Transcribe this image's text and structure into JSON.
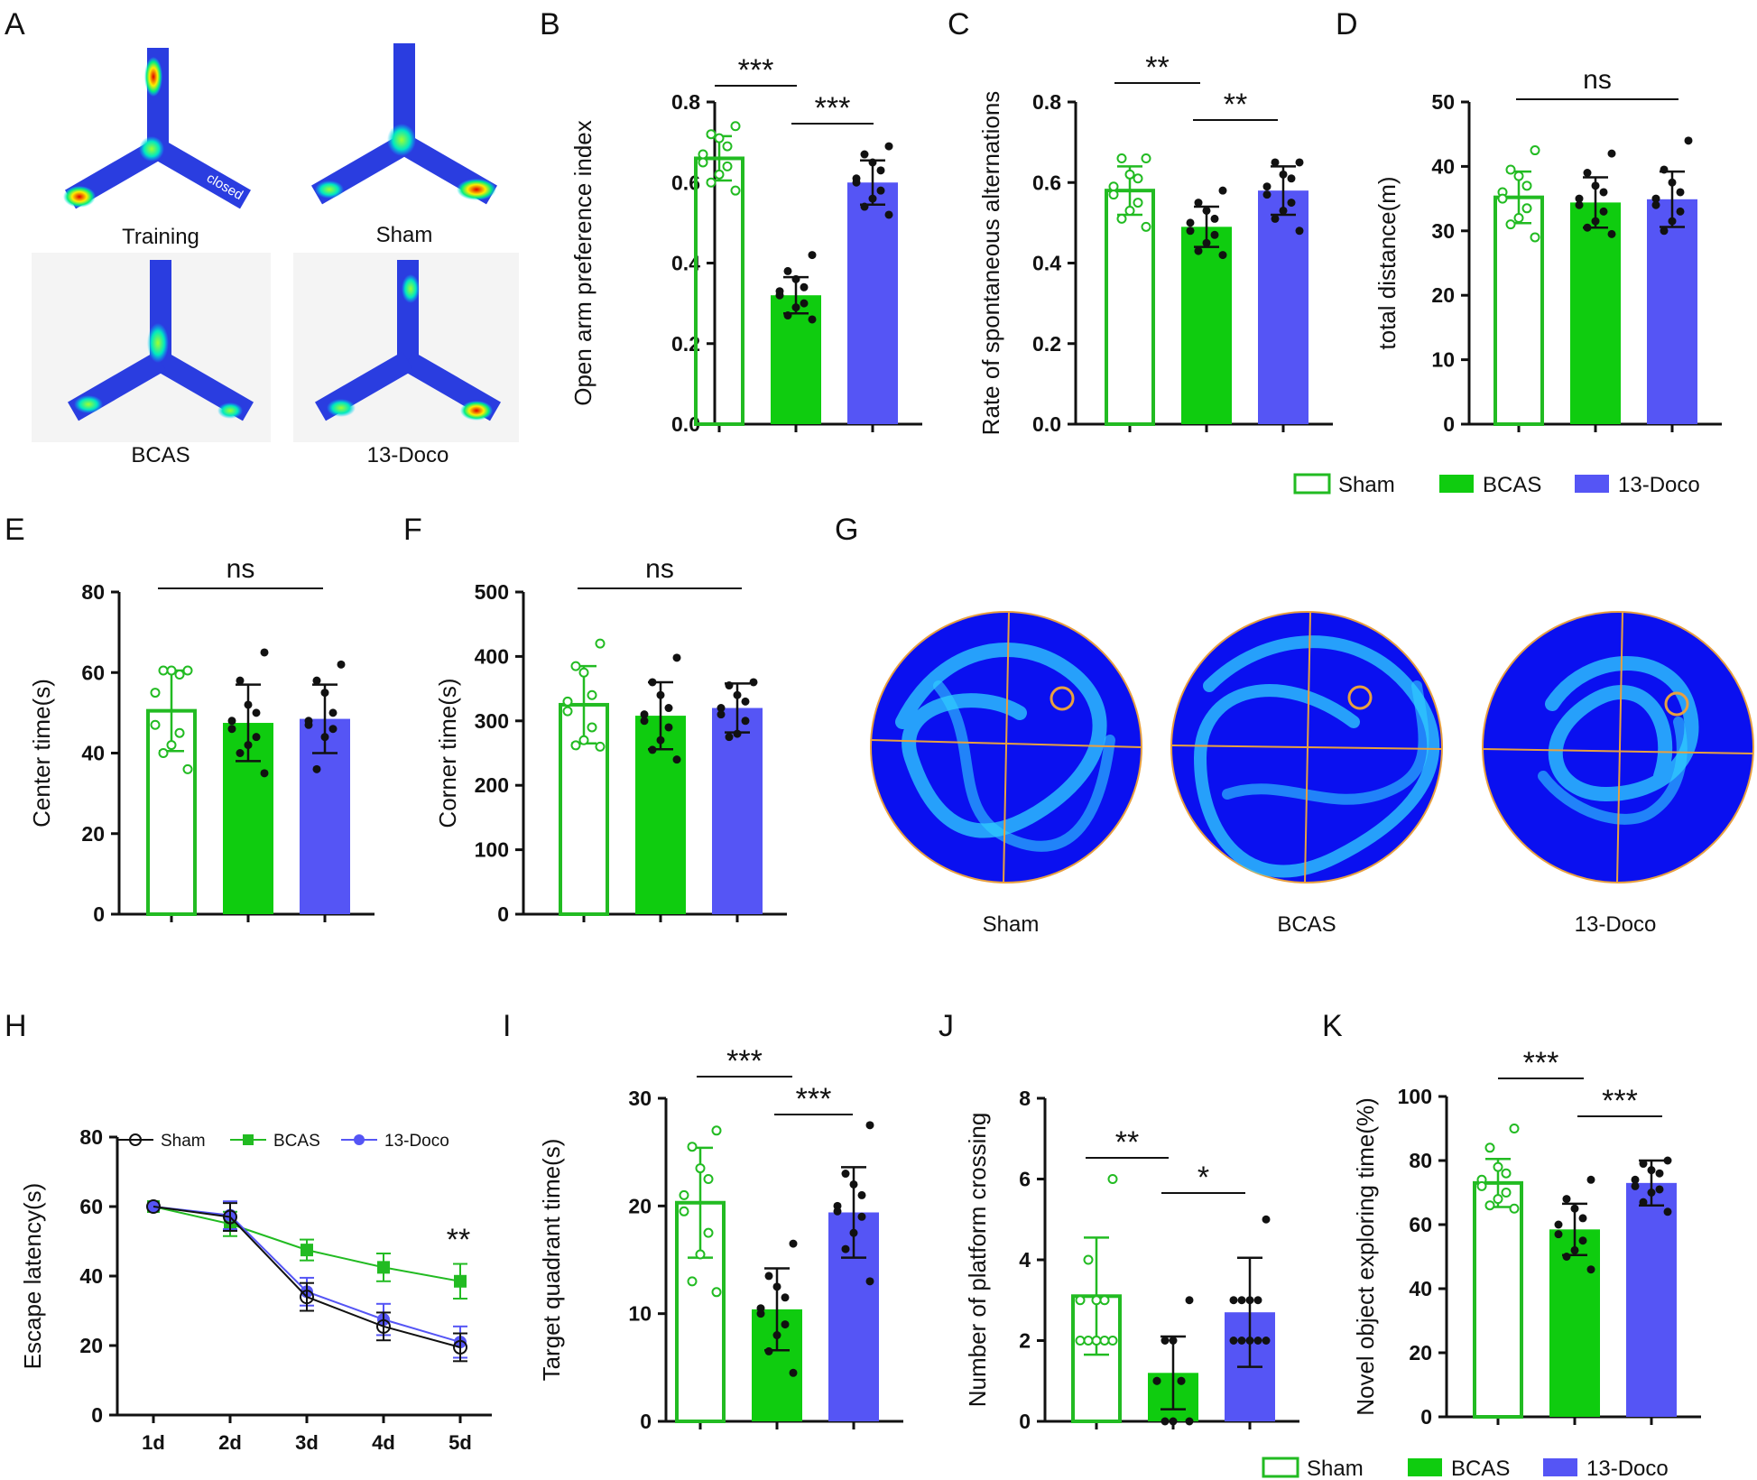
{
  "colors": {
    "sham": "#22bb22",
    "bcas": "#0fcc0f",
    "doco": "#5555f5",
    "ink": "#111111"
  },
  "legend": {
    "sham": "Sham",
    "bcas": "BCAS",
    "doco": "13-Doco"
  },
  "panels": {
    "A": {
      "letter": "A",
      "images": [
        {
          "label": "Training",
          "arm_label": "closed"
        },
        {
          "label": "Sham"
        },
        {
          "label": "BCAS"
        },
        {
          "label": "13-Doco"
        }
      ]
    },
    "G": {
      "letter": "G",
      "labels": [
        "Sham",
        "BCAS",
        "13-Doco"
      ]
    }
  },
  "chart_data": [
    {
      "id": "B",
      "type": "bar",
      "ylabel": "Open arm preference index",
      "ylim": [
        0,
        0.8
      ],
      "ticks": [
        "0.0",
        "0.2",
        "0.4",
        "0.6",
        "0.8"
      ],
      "categories": [
        "Sham",
        "BCAS",
        "13-Doco"
      ],
      "values": [
        0.66,
        0.32,
        0.6
      ],
      "sd": [
        0.055,
        0.045,
        0.055
      ],
      "points": [
        [
          0.74,
          0.72,
          0.71,
          0.69,
          0.67,
          0.65,
          0.64,
          0.62,
          0.6,
          0.58
        ],
        [
          0.42,
          0.38,
          0.36,
          0.34,
          0.33,
          0.32,
          0.3,
          0.29,
          0.27,
          0.26
        ],
        [
          0.69,
          0.67,
          0.65,
          0.63,
          0.61,
          0.6,
          0.58,
          0.56,
          0.54,
          0.52
        ]
      ],
      "significance": [
        {
          "pair": [
            0,
            1
          ],
          "label": "***"
        },
        {
          "pair": [
            1,
            2
          ],
          "label": "***"
        }
      ]
    },
    {
      "id": "C",
      "type": "bar",
      "ylabel": "Rate of spontaneous alternations",
      "ylim": [
        0,
        0.8
      ],
      "ticks": [
        "0.0",
        "0.2",
        "0.4",
        "0.6",
        "0.8"
      ],
      "categories": [
        "Sham",
        "BCAS",
        "13-Doco"
      ],
      "values": [
        0.58,
        0.49,
        0.58
      ],
      "sd": [
        0.06,
        0.05,
        0.06
      ],
      "points": [
        [
          0.66,
          0.66,
          0.62,
          0.61,
          0.59,
          0.57,
          0.55,
          0.53,
          0.51,
          0.49
        ],
        [
          0.58,
          0.55,
          0.53,
          0.51,
          0.5,
          0.48,
          0.47,
          0.45,
          0.43,
          0.42
        ],
        [
          0.65,
          0.65,
          0.62,
          0.61,
          0.59,
          0.57,
          0.55,
          0.53,
          0.51,
          0.48
        ]
      ],
      "significance": [
        {
          "pair": [
            0,
            1
          ],
          "label": "**"
        },
        {
          "pair": [
            1,
            2
          ],
          "label": "**"
        }
      ]
    },
    {
      "id": "D",
      "type": "bar",
      "ylabel": "total distance(m)",
      "ylim": [
        0,
        50
      ],
      "ticks": [
        "0",
        "10",
        "20",
        "30",
        "40",
        "50"
      ],
      "categories": [
        "Sham",
        "BCAS",
        "13-Doco"
      ],
      "values": [
        35.2,
        34.4,
        34.9
      ],
      "sd": [
        4.0,
        3.9,
        4.3
      ],
      "points": [
        [
          42.5,
          39.5,
          38.5,
          37,
          36,
          35,
          33.5,
          32,
          31,
          29
        ],
        [
          42,
          39,
          37,
          36,
          35,
          34,
          33,
          31.5,
          30.5,
          29.5
        ],
        [
          44,
          39.5,
          37.5,
          36,
          35,
          34,
          33,
          31.5,
          30
        ]
      ],
      "significance": [
        {
          "pair": [
            0,
            2
          ],
          "label": "ns"
        }
      ]
    },
    {
      "id": "E",
      "type": "bar",
      "ylabel": "Center time(s)",
      "ylim": [
        0,
        80
      ],
      "ticks": [
        "0",
        "20",
        "40",
        "60",
        "80"
      ],
      "categories": [
        "Sham",
        "BCAS",
        "13-Doco"
      ],
      "values": [
        50.5,
        47.5,
        48.5
      ],
      "sd": [
        10,
        9.5,
        8.5
      ],
      "points": [
        [
          60.5,
          60.5,
          60.5,
          59.5,
          55,
          47,
          45,
          42,
          40,
          36
        ],
        [
          65,
          58,
          52,
          50,
          48,
          46,
          44,
          42,
          40,
          35
        ],
        [
          62,
          58,
          55,
          50,
          48,
          47,
          46,
          44,
          36
        ]
      ],
      "significance": [
        {
          "pair": [
            0,
            2
          ],
          "label": "ns"
        }
      ]
    },
    {
      "id": "F",
      "type": "bar",
      "ylabel": "Corner time(s)",
      "ylim": [
        0,
        500
      ],
      "ticks": [
        "0",
        "100",
        "200",
        "300",
        "400",
        "500"
      ],
      "categories": [
        "Sham",
        "BCAS",
        "13-Doco"
      ],
      "values": [
        325,
        308,
        320
      ],
      "sd": [
        60,
        52,
        38
      ],
      "points": [
        [
          420,
          385,
          375,
          340,
          330,
          315,
          290,
          270,
          262,
          260
        ],
        [
          398,
          360,
          340,
          320,
          310,
          300,
          290,
          270,
          255,
          240
        ],
        [
          360,
          355,
          340,
          330,
          320,
          310,
          300,
          280,
          275
        ]
      ],
      "significance": [
        {
          "pair": [
            0,
            2
          ],
          "label": "ns"
        }
      ]
    },
    {
      "id": "H",
      "type": "line",
      "ylabel": "Escape latency(s)",
      "ylim": [
        0,
        80
      ],
      "ticks": [
        "0",
        "20",
        "40",
        "60",
        "80"
      ],
      "x": [
        "1d",
        "2d",
        "3d",
        "4d",
        "5d"
      ],
      "series": [
        {
          "name": "Sham",
          "values": [
            60,
            57,
            34,
            25.5,
            19.5
          ],
          "err": [
            0,
            4,
            4,
            4,
            4
          ],
          "marker": "open-circle",
          "color": "#111111"
        },
        {
          "name": "BCAS",
          "values": [
            60,
            55,
            47.5,
            42.5,
            38.5
          ],
          "err": [
            0,
            3.5,
            3,
            4,
            5
          ],
          "marker": "square",
          "color": "#22bb22"
        },
        {
          "name": "13-Doco",
          "values": [
            60,
            57.5,
            35.5,
            27.5,
            21
          ],
          "err": [
            0,
            4,
            4,
            4.5,
            4.5
          ],
          "marker": "circle",
          "color": "#5555f5"
        }
      ],
      "annotation": "**"
    },
    {
      "id": "I",
      "type": "bar",
      "ylabel": "Target quadrant time(s)",
      "ylim": [
        0,
        30
      ],
      "ticks": [
        "0",
        "10",
        "20",
        "30"
      ],
      "categories": [
        "Sham",
        "BCAS",
        "13-Doco"
      ],
      "values": [
        20.3,
        10.4,
        19.4
      ],
      "sd": [
        5.1,
        3.8,
        4.2
      ],
      "points": [
        [
          27,
          25.5,
          23.5,
          22.5,
          21,
          19.5,
          17.5,
          15.5,
          13,
          12
        ],
        [
          16.5,
          13.5,
          12.5,
          11.5,
          10.5,
          10,
          9,
          8,
          6.5,
          4.5
        ],
        [
          27.5,
          23,
          22,
          21,
          20,
          19.5,
          19,
          17.5,
          16,
          13
        ]
      ],
      "significance": [
        {
          "pair": [
            0,
            1
          ],
          "label": "***"
        },
        {
          "pair": [
            1,
            2
          ],
          "label": "***"
        }
      ]
    },
    {
      "id": "J",
      "type": "bar",
      "ylabel": "Number of platform crossing",
      "ylim": [
        0,
        8
      ],
      "ticks": [
        "0",
        "2",
        "4",
        "6",
        "8"
      ],
      "categories": [
        "Sham",
        "BCAS",
        "13-Doco"
      ],
      "values": [
        3.1,
        1.2,
        2.7
      ],
      "sd": [
        1.45,
        0.9,
        1.35
      ],
      "points": [
        [
          6,
          4,
          3,
          3,
          3,
          2,
          2,
          2,
          2,
          2
        ],
        [
          3,
          2,
          2,
          1,
          1,
          1,
          1,
          0,
          0,
          0
        ],
        [
          5,
          3,
          3,
          3,
          3,
          2,
          2,
          2,
          2,
          2
        ]
      ],
      "significance": [
        {
          "pair": [
            0,
            1
          ],
          "label": "**"
        },
        {
          "pair": [
            1,
            2
          ],
          "label": "*"
        }
      ]
    },
    {
      "id": "K",
      "type": "bar",
      "ylabel": "Novel object exploring time(%)",
      "ylim": [
        0,
        100
      ],
      "ticks": [
        "0",
        "20",
        "40",
        "60",
        "80",
        "100"
      ],
      "categories": [
        "Sham",
        "BCAS",
        "13-Doco"
      ],
      "values": [
        73,
        58.5,
        73
      ],
      "sd": [
        7.5,
        8,
        7
      ],
      "points": [
        [
          90,
          84,
          78,
          76,
          74,
          72,
          70,
          68,
          66,
          65
        ],
        [
          74,
          68,
          65,
          62,
          60,
          57,
          55,
          52,
          50,
          46
        ],
        [
          80,
          79,
          77,
          76,
          74,
          72,
          71,
          70,
          67,
          64
        ]
      ],
      "significance": [
        {
          "pair": [
            0,
            1
          ],
          "label": "***"
        },
        {
          "pair": [
            1,
            2
          ],
          "label": "***"
        }
      ]
    }
  ]
}
